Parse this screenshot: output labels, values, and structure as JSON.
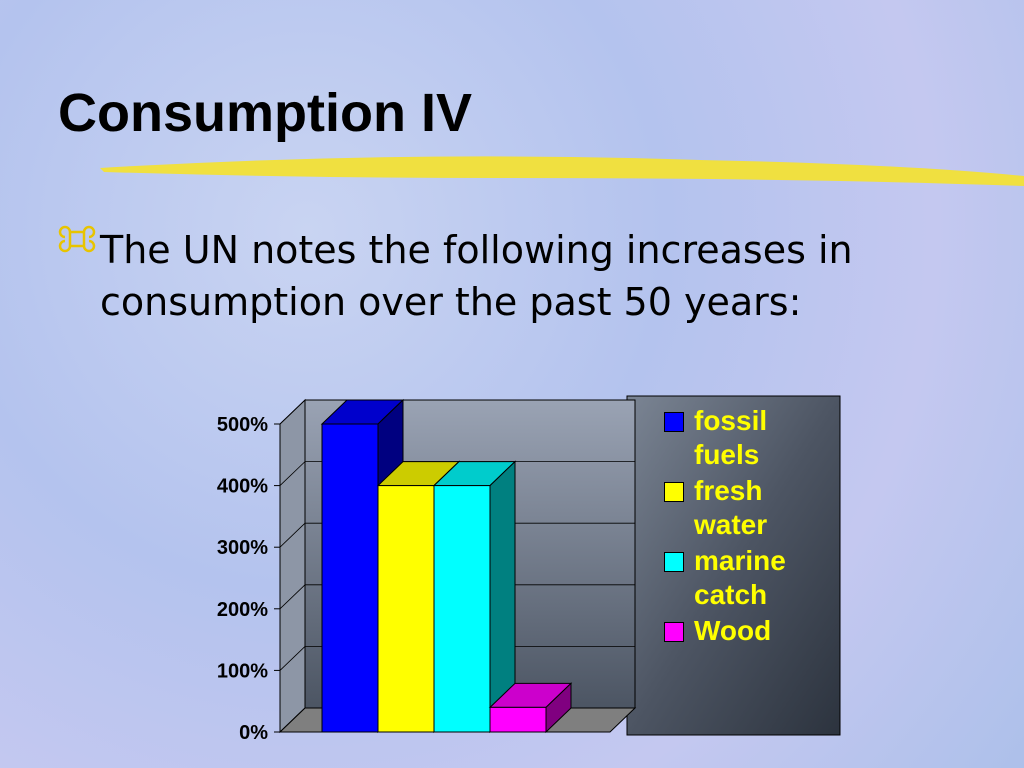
{
  "title": "Consumption IV",
  "bullet": "The UN notes the following increases in consumption over the past 50 years:",
  "chart_data": {
    "type": "bar3d",
    "categories": [
      null
    ],
    "series": [
      {
        "name": "fossil fuels",
        "color": "#0000ff",
        "values": [
          500
        ]
      },
      {
        "name": "fresh water",
        "color": "#ffff00",
        "values": [
          400
        ]
      },
      {
        "name": "marine catch",
        "color": "#00ffff",
        "values": [
          400
        ]
      },
      {
        "name": "Wood",
        "color": "#ff00ff",
        "values": [
          40
        ]
      }
    ],
    "ylim": [
      0,
      500
    ],
    "yticks": [
      {
        "value": 0,
        "label": "0%"
      },
      {
        "value": 100,
        "label": "100%"
      },
      {
        "value": 200,
        "label": "200%"
      },
      {
        "value": 300,
        "label": "300%"
      },
      {
        "value": 400,
        "label": "400%"
      },
      {
        "value": 500,
        "label": "500%"
      }
    ],
    "grid": true,
    "legend": "right"
  }
}
